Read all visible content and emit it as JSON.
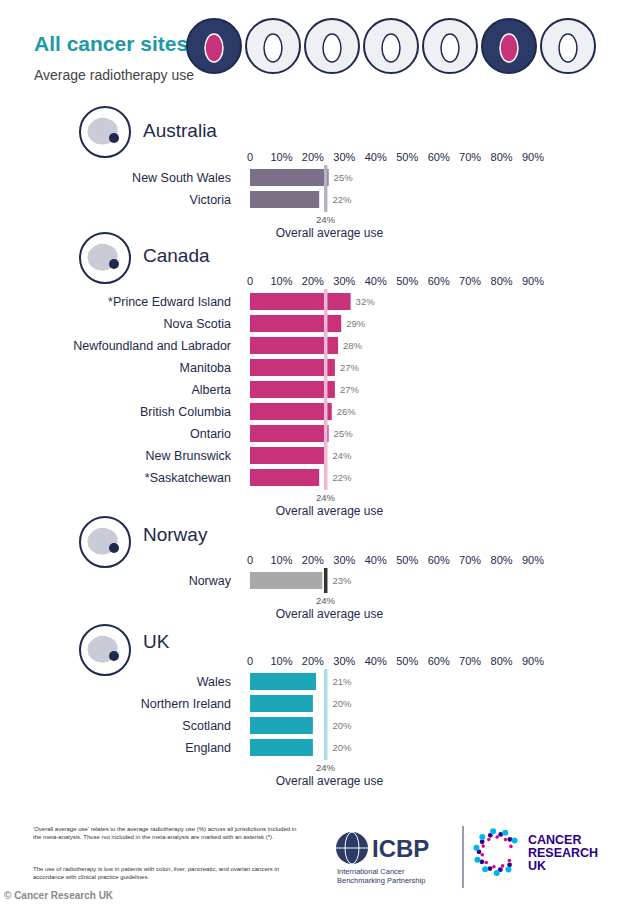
{
  "header": {
    "title": "All cancer sites",
    "subtitle": "Average radiotherapy use"
  },
  "chart_data": [
    {
      "type": "bar",
      "title": "Australia",
      "orientation": "horizontal",
      "data_labels": true,
      "grid": false,
      "color": "#7b7088",
      "categories": [
        "New South Wales",
        "Victoria"
      ],
      "values": [
        25,
        22
      ],
      "value_labels": [
        "25%",
        "22%"
      ],
      "xlim": [
        0,
        90
      ],
      "xticks": [
        0,
        {
          "value": 10,
          "label": "10%"
        },
        {
          "value": 20,
          "label": "20%"
        },
        {
          "value": 30,
          "label": "30%"
        },
        {
          "value": 40,
          "label": "40%"
        },
        {
          "value": 50,
          "label": "50%"
        },
        {
          "value": 60,
          "label": "60%"
        },
        {
          "value": 70,
          "label": "70%"
        },
        {
          "value": 80,
          "label": "80%"
        },
        {
          "value": 90,
          "label": "90%"
        }
      ],
      "average": {
        "value": 24,
        "label": "24%",
        "name": "Overall average use"
      }
    },
    {
      "type": "bar",
      "title": "Canada",
      "orientation": "horizontal",
      "data_labels": true,
      "grid": false,
      "color": "#c8327b",
      "categories": [
        "*Prince Edward Island",
        "Nova Scotia",
        "Newfoundland and Labrador",
        "Manitoba",
        "Alberta",
        "British Columbia",
        "Ontario",
        "New Brunswick",
        "*Saskatchewan"
      ],
      "values": [
        32,
        29,
        28,
        27,
        27,
        26,
        25,
        24,
        22
      ],
      "value_labels": [
        "32%",
        "29%",
        "28%",
        "27%",
        "27%",
        "26%",
        "25%",
        "24%",
        "22%"
      ],
      "xlim": [
        0,
        90
      ],
      "xticks": [
        0,
        {
          "value": 10,
          "label": "10%"
        },
        {
          "value": 20,
          "label": "20%"
        },
        {
          "value": 30,
          "label": "30%"
        },
        {
          "value": 40,
          "label": "40%"
        },
        {
          "value": 50,
          "label": "50%"
        },
        {
          "value": 60,
          "label": "60%"
        },
        {
          "value": 70,
          "label": "70%"
        },
        {
          "value": 80,
          "label": "80%"
        },
        {
          "value": 90,
          "label": "90%"
        }
      ],
      "average": {
        "value": 24,
        "label": "24%",
        "name": "Overall average use"
      }
    },
    {
      "type": "bar",
      "title": "Norway",
      "orientation": "horizontal",
      "data_labels": true,
      "grid": false,
      "color": "#a9a9a9",
      "categories": [
        "Norway"
      ],
      "values": [
        23
      ],
      "value_labels": [
        "23%"
      ],
      "xlim": [
        0,
        90
      ],
      "xticks": [
        0,
        {
          "value": 10,
          "label": "10%"
        },
        {
          "value": 20,
          "label": "20%"
        },
        {
          "value": 30,
          "label": "30%"
        },
        {
          "value": 40,
          "label": "40%"
        },
        {
          "value": 50,
          "label": "50%"
        },
        {
          "value": 60,
          "label": "60%"
        },
        {
          "value": 70,
          "label": "70%"
        },
        {
          "value": 80,
          "label": "80%"
        },
        {
          "value": 90,
          "label": "90%"
        }
      ],
      "average": {
        "value": 24,
        "label": "24%",
        "name": "Overall average use"
      }
    },
    {
      "type": "bar",
      "title": "UK",
      "orientation": "horizontal",
      "data_labels": true,
      "grid": false,
      "color": "#1ba7b8",
      "categories": [
        "Wales",
        "Northern Ireland",
        "Scotland",
        "England"
      ],
      "values": [
        21,
        20,
        20,
        20
      ],
      "value_labels": [
        "21%",
        "20%",
        "20%",
        "20%"
      ],
      "xlim": [
        0,
        90
      ],
      "xticks": [
        0,
        {
          "value": 10,
          "label": "10%"
        },
        {
          "value": 20,
          "label": "20%"
        },
        {
          "value": 30,
          "label": "30%"
        },
        {
          "value": 40,
          "label": "40%"
        },
        {
          "value": 50,
          "label": "50%"
        },
        {
          "value": 60,
          "label": "60%"
        },
        {
          "value": 70,
          "label": "70%"
        },
        {
          "value": 80,
          "label": "80%"
        },
        {
          "value": 90,
          "label": "90%"
        }
      ],
      "average": {
        "value": 24,
        "label": "24%",
        "name": "Overall average use"
      }
    }
  ],
  "footer": {
    "notes": [
      "'Overall average use' relates to the average radiotherapy use (%) across all jurisdictions included in the meta-analysis. Those not included in the meta-analysis are marked with an asterisk (*).",
      "The use of radiotherapy is low in patients with colon, liver, pancreatic, and ovarian cancers in accordance with clinical practice guidelines."
    ],
    "icbp": {
      "name": "ICBP",
      "lines": [
        "International Cancer",
        "Benchmarking Partnership"
      ]
    },
    "cruk": [
      "CANCER",
      "RESEARCH",
      "UK"
    ],
    "credit": "© Cancer Research UK"
  }
}
